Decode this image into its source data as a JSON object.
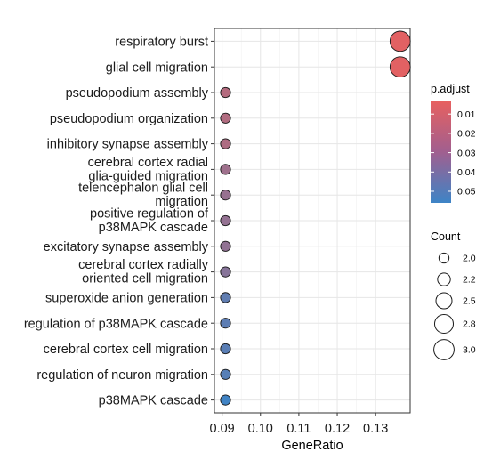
{
  "chart_data": {
    "type": "scatter",
    "subtype": "dot-plot",
    "xlabel": "GeneRatio",
    "ylabel": "",
    "xlim": [
      0.088,
      0.139
    ],
    "xticks": [
      0.09,
      0.1,
      0.11,
      0.12,
      0.13
    ],
    "xtick_labels": [
      "0.09",
      "0.10",
      "0.11",
      "0.12",
      "0.13"
    ],
    "grid": true,
    "color_scale": {
      "low_color": "#e8605f",
      "high_color": "#3d84c6",
      "min": 0.003,
      "max": 0.056
    },
    "size_scale": {
      "min": 2.0,
      "max": 3.0
    },
    "terms": [
      {
        "label": [
          "respiratory burst"
        ],
        "gene_ratio": 0.1364,
        "count": 3,
        "p_adjust": 0.005
      },
      {
        "label": [
          "glial cell migration"
        ],
        "gene_ratio": 0.1364,
        "count": 3,
        "p_adjust": 0.005
      },
      {
        "label": [
          "pseudopodium assembly"
        ],
        "gene_ratio": 0.0909,
        "count": 2,
        "p_adjust": 0.019
      },
      {
        "label": [
          "pseudopodium organization"
        ],
        "gene_ratio": 0.0909,
        "count": 2,
        "p_adjust": 0.02
      },
      {
        "label": [
          "inhibitory synapse assembly"
        ],
        "gene_ratio": 0.0909,
        "count": 2,
        "p_adjust": 0.021
      },
      {
        "label": [
          "cerebral cortex radial",
          "glia-guided migration"
        ],
        "gene_ratio": 0.0909,
        "count": 2,
        "p_adjust": 0.026
      },
      {
        "label": [
          "telencephalon glial cell",
          "migration"
        ],
        "gene_ratio": 0.0909,
        "count": 2,
        "p_adjust": 0.028
      },
      {
        "label": [
          "positive regulation of",
          "p38MAPK cascade"
        ],
        "gene_ratio": 0.0909,
        "count": 2,
        "p_adjust": 0.029
      },
      {
        "label": [
          "excitatory synapse assembly"
        ],
        "gene_ratio": 0.0909,
        "count": 2,
        "p_adjust": 0.03
      },
      {
        "label": [
          "cerebral cortex radially",
          "oriented cell migration"
        ],
        "gene_ratio": 0.0909,
        "count": 2,
        "p_adjust": 0.033
      },
      {
        "label": [
          "superoxide anion generation"
        ],
        "gene_ratio": 0.0909,
        "count": 2,
        "p_adjust": 0.045
      },
      {
        "label": [
          "regulation of p38MAPK cascade"
        ],
        "gene_ratio": 0.0909,
        "count": 2,
        "p_adjust": 0.046
      },
      {
        "label": [
          "cerebral cortex cell migration"
        ],
        "gene_ratio": 0.0909,
        "count": 2,
        "p_adjust": 0.047
      },
      {
        "label": [
          "regulation of neuron migration"
        ],
        "gene_ratio": 0.0909,
        "count": 2,
        "p_adjust": 0.048
      },
      {
        "label": [
          "p38MAPK cascade"
        ],
        "gene_ratio": 0.0909,
        "count": 2,
        "p_adjust": 0.055
      }
    ],
    "legend_color": {
      "title": "p.adjust",
      "values": [
        0.01,
        0.02,
        0.03,
        0.04,
        0.05
      ],
      "labels": [
        "0.01",
        "0.02",
        "0.03",
        "0.04",
        "0.05"
      ]
    },
    "legend_size": {
      "title": "Count",
      "values": [
        2.0,
        2.2,
        2.5,
        2.8,
        3.0
      ],
      "labels": [
        "2.0",
        "2.2",
        "2.5",
        "2.8",
        "3.0"
      ]
    },
    "legend_placement": "right"
  }
}
